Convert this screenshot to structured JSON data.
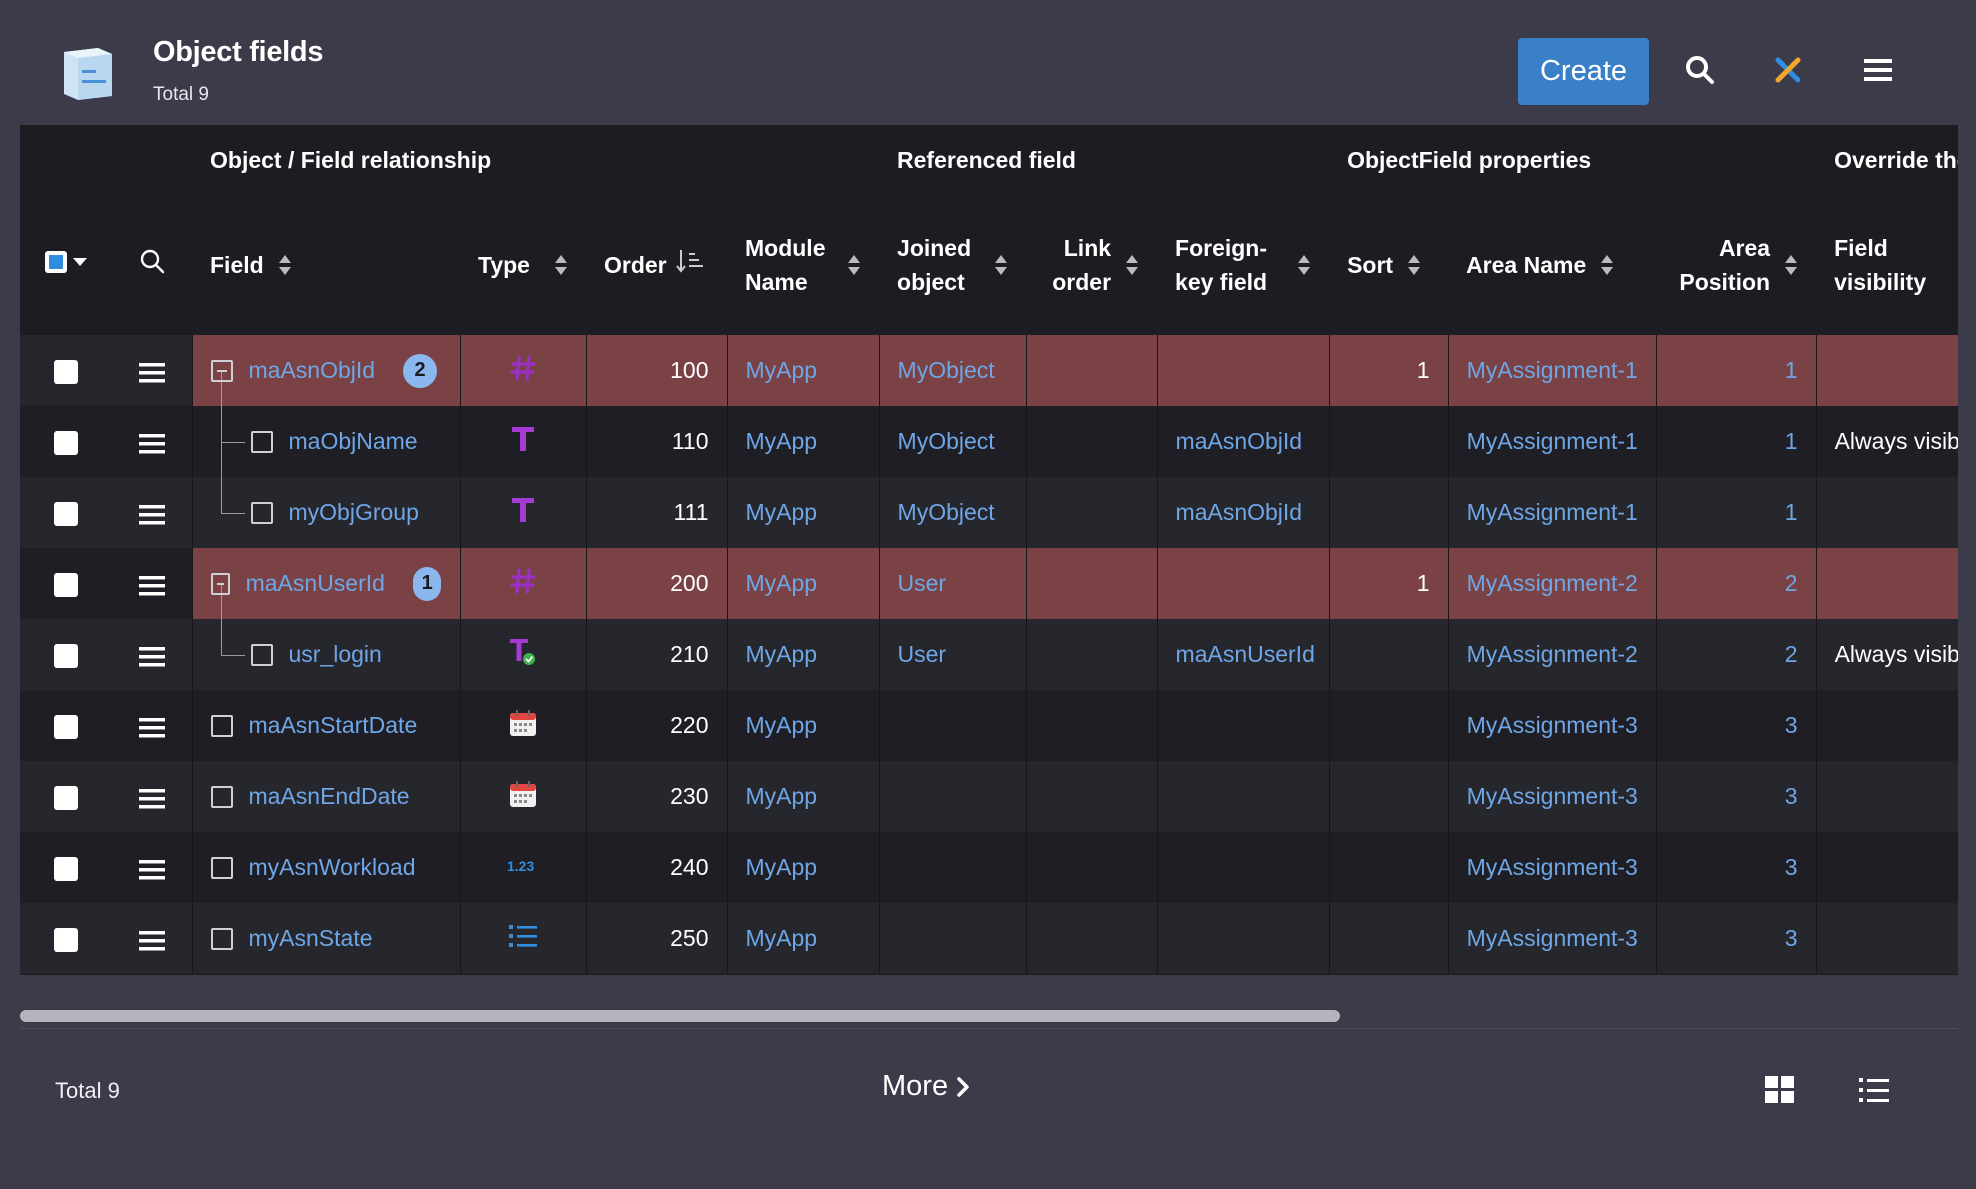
{
  "header": {
    "title": "Object fields",
    "subtitle": "Total 9",
    "create_label": "Create"
  },
  "groups": [
    {
      "label": ""
    },
    {
      "label": "Object / Field relationship"
    },
    {
      "label": "Referenced field"
    },
    {
      "label": "ObjectField properties"
    },
    {
      "label": "Override the"
    }
  ],
  "columns": {
    "field": "Field",
    "type": "Type",
    "order": "Order",
    "module_1": "Module",
    "module_2": "Name",
    "joined_1": "Joined",
    "joined_2": "object",
    "link_1": "Link",
    "link_2": "order",
    "fk_1": "Foreign-",
    "fk_2": "key field",
    "sort": "Sort",
    "area_name": "Area Name",
    "area_pos_1": "Area",
    "area_pos_2": "Position",
    "fv_1": "Field",
    "fv_2": "visibility"
  },
  "rows": [
    {
      "field": "maAsnObjId",
      "badge": "2",
      "type_icon": "hash-icon",
      "order": "100",
      "module": "MyApp",
      "joined": "MyObject",
      "link_order": "",
      "fk": "",
      "sort": "1",
      "area_name": "MyAssignment-1",
      "area_pos": "1",
      "visibility": "",
      "highlight": true,
      "level": 0,
      "expand": true
    },
    {
      "field": "maObjName",
      "badge": "",
      "type_icon": "text-icon",
      "order": "110",
      "module": "MyApp",
      "joined": "MyObject",
      "link_order": "",
      "fk": "maAsnObjId",
      "sort": "",
      "area_name": "MyAssignment-1",
      "area_pos": "1",
      "visibility": "Always visibl",
      "highlight": false,
      "level": 1,
      "expand": false
    },
    {
      "field": "myObjGroup",
      "badge": "",
      "type_icon": "text-icon",
      "order": "111",
      "module": "MyApp",
      "joined": "MyObject",
      "link_order": "",
      "fk": "maAsnObjId",
      "sort": "",
      "area_name": "MyAssignment-1",
      "area_pos": "1",
      "visibility": "",
      "highlight": false,
      "level": 1,
      "expand": false
    },
    {
      "field": "maAsnUserId",
      "badge": "1",
      "type_icon": "hash-icon",
      "order": "200",
      "module": "MyApp",
      "joined": "User",
      "link_order": "",
      "fk": "",
      "sort": "1",
      "area_name": "MyAssignment-2",
      "area_pos": "2",
      "visibility": "",
      "highlight": true,
      "level": 0,
      "expand": true
    },
    {
      "field": "usr_login",
      "badge": "",
      "type_icon": "text-check-icon",
      "order": "210",
      "module": "MyApp",
      "joined": "User",
      "link_order": "",
      "fk": "maAsnUserId",
      "sort": "",
      "area_name": "MyAssignment-2",
      "area_pos": "2",
      "visibility": "Always visibl",
      "highlight": false,
      "level": 1,
      "expand": false
    },
    {
      "field": "maAsnStartDate",
      "badge": "",
      "type_icon": "calendar-icon",
      "order": "220",
      "module": "MyApp",
      "joined": "",
      "link_order": "",
      "fk": "",
      "sort": "",
      "area_name": "MyAssignment-3",
      "area_pos": "3",
      "visibility": "",
      "highlight": false,
      "level": 0,
      "expand": false
    },
    {
      "field": "maAsnEndDate",
      "badge": "",
      "type_icon": "calendar-icon",
      "order": "230",
      "module": "MyApp",
      "joined": "",
      "link_order": "",
      "fk": "",
      "sort": "",
      "area_name": "MyAssignment-3",
      "area_pos": "3",
      "visibility": "",
      "highlight": false,
      "level": 0,
      "expand": false
    },
    {
      "field": "myAsnWorkload",
      "badge": "",
      "type_icon": "decimal-icon",
      "order": "240",
      "module": "MyApp",
      "joined": "",
      "link_order": "",
      "fk": "",
      "sort": "",
      "area_name": "MyAssignment-3",
      "area_pos": "3",
      "visibility": "",
      "highlight": false,
      "level": 0,
      "expand": false
    },
    {
      "field": "myAsnState",
      "badge": "",
      "type_icon": "list-icon",
      "order": "250",
      "module": "MyApp",
      "joined": "",
      "link_order": "",
      "fk": "",
      "sort": "",
      "area_name": "MyAssignment-3",
      "area_pos": "3",
      "visibility": "",
      "highlight": false,
      "level": 0,
      "expand": false
    }
  ],
  "footer": {
    "total": "Total 9",
    "more_label": "More"
  },
  "colors": {
    "accent": "#3a80c8",
    "link": "#6fa6e6",
    "highlight_row": "#7a4245",
    "type_purple": "#9b2fc6"
  },
  "icons": {
    "header": [
      "search-icon",
      "settings-cross-icon",
      "menu-icon"
    ],
    "footer": [
      "grid-view-icon",
      "list-view-icon"
    ]
  }
}
